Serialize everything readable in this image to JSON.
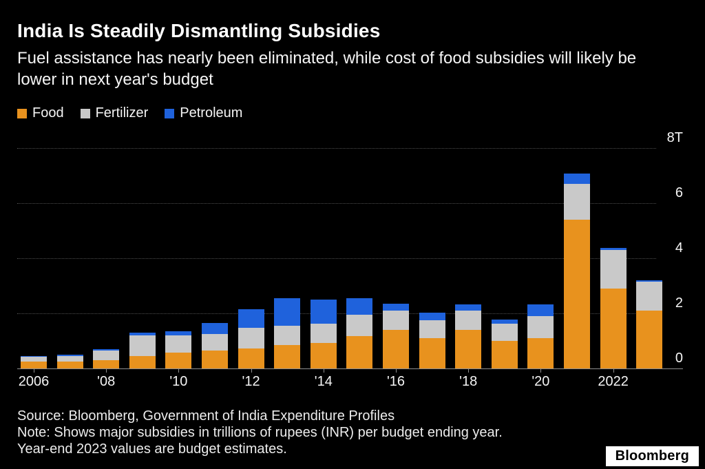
{
  "header": {
    "title": "India Is Steadily Dismantling Subsidies",
    "subtitle": "Fuel assistance has nearly been eliminated, while cost of food subsidies will likely be lower in next year's budget"
  },
  "chart_data": {
    "type": "bar",
    "stacked": true,
    "title": "India Is Steadily Dismantling Subsidies",
    "unit": "trillions of rupees (INR)",
    "categories": [
      2006,
      2007,
      2008,
      2009,
      2010,
      2011,
      2012,
      2013,
      2014,
      2015,
      2016,
      2017,
      2018,
      2019,
      2020,
      2021,
      2022,
      2023
    ],
    "series": [
      {
        "name": "Food",
        "color": "#E8921E",
        "values": [
          0.25,
          0.25,
          0.31,
          0.45,
          0.58,
          0.64,
          0.73,
          0.85,
          0.92,
          1.18,
          1.39,
          1.1,
          1.4,
          1.01,
          1.09,
          5.41,
          2.9,
          2.1
        ]
      },
      {
        "name": "Fertilizer",
        "color": "#C9C9C9",
        "values": [
          0.18,
          0.2,
          0.33,
          0.76,
          0.61,
          0.62,
          0.74,
          0.7,
          0.71,
          0.76,
          0.72,
          0.66,
          0.7,
          0.62,
          0.8,
          1.28,
          1.4,
          1.05
        ]
      },
      {
        "name": "Petroleum",
        "color": "#1F62DC",
        "values": [
          0.03,
          0.05,
          0.05,
          0.1,
          0.15,
          0.38,
          0.68,
          1.0,
          0.88,
          0.6,
          0.25,
          0.27,
          0.22,
          0.15,
          0.43,
          0.39,
          0.07,
          0.06
        ]
      }
    ],
    "ylim": [
      0,
      8
    ],
    "yticks": [
      0,
      2,
      4,
      6,
      8
    ],
    "ytick_labels": [
      "0",
      "2",
      "4",
      "6",
      "8T"
    ],
    "xtick_indices": [
      0,
      2,
      4,
      6,
      8,
      10,
      12,
      14,
      16
    ],
    "xtick_labels": [
      "2006",
      "'08",
      "'10",
      "'12",
      "'14",
      "'16",
      "'18",
      "'20",
      "2022"
    ],
    "grid": "horizontal dotted",
    "legend_position": "top-left",
    "background": "#000000"
  },
  "footer": {
    "source": "Source: Bloomberg, Government of India Expenditure Profiles",
    "note_line1": "Note: Shows major subsidies in trillions of rupees (INR) per budget ending year.",
    "note_line2": "Year-end 2023 values are budget estimates.",
    "logo": "Bloomberg"
  }
}
